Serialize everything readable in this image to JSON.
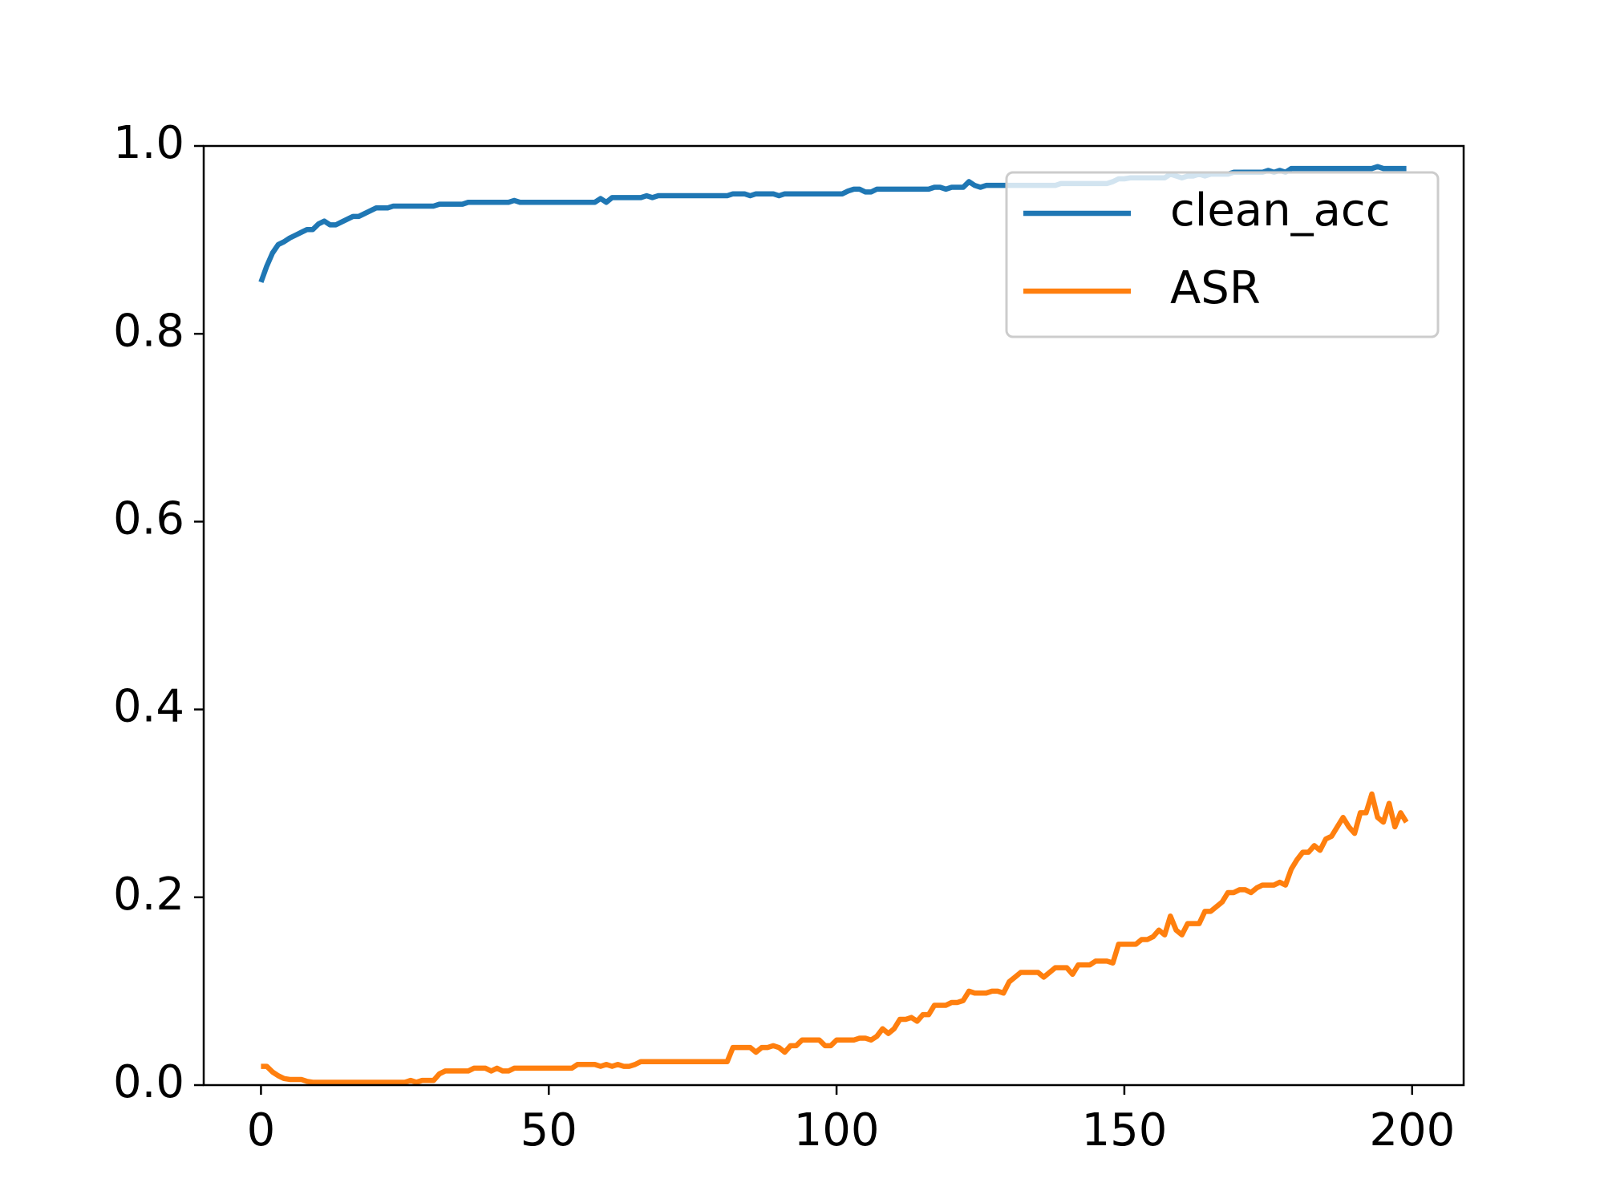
{
  "chart_data": {
    "type": "line",
    "x": [
      0,
      1,
      2,
      3,
      4,
      5,
      6,
      7,
      8,
      9,
      10,
      11,
      12,
      13,
      14,
      15,
      16,
      17,
      18,
      19,
      20,
      21,
      22,
      23,
      24,
      25,
      26,
      27,
      28,
      29,
      30,
      31,
      32,
      33,
      34,
      35,
      36,
      37,
      38,
      39,
      40,
      41,
      42,
      43,
      44,
      45,
      46,
      47,
      48,
      49,
      50,
      51,
      52,
      53,
      54,
      55,
      56,
      57,
      58,
      59,
      60,
      61,
      62,
      63,
      64,
      65,
      66,
      67,
      68,
      69,
      70,
      71,
      72,
      73,
      74,
      75,
      76,
      77,
      78,
      79,
      80,
      81,
      82,
      83,
      84,
      85,
      86,
      87,
      88,
      89,
      90,
      91,
      92,
      93,
      94,
      95,
      96,
      97,
      98,
      99,
      100,
      101,
      102,
      103,
      104,
      105,
      106,
      107,
      108,
      109,
      110,
      111,
      112,
      113,
      114,
      115,
      116,
      117,
      118,
      119,
      120,
      121,
      122,
      123,
      124,
      125,
      126,
      127,
      128,
      129,
      130,
      131,
      132,
      133,
      134,
      135,
      136,
      137,
      138,
      139,
      140,
      141,
      142,
      143,
      144,
      145,
      146,
      147,
      148,
      149,
      150,
      151,
      152,
      153,
      154,
      155,
      156,
      157,
      158,
      159,
      160,
      161,
      162,
      163,
      164,
      165,
      166,
      167,
      168,
      169,
      170,
      171,
      172,
      173,
      174,
      175,
      176,
      177,
      178,
      179,
      180,
      181,
      182,
      183,
      184,
      185,
      186,
      187,
      188,
      189,
      190,
      191,
      192,
      193,
      194,
      195,
      196,
      197,
      198,
      199
    ],
    "series": [
      {
        "name": "clean_acc",
        "color": "#1f77b4",
        "values": [
          0.855,
          0.872,
          0.886,
          0.895,
          0.898,
          0.902,
          0.905,
          0.908,
          0.911,
          0.911,
          0.917,
          0.92,
          0.916,
          0.916,
          0.919,
          0.922,
          0.925,
          0.925,
          0.928,
          0.931,
          0.934,
          0.934,
          0.934,
          0.936,
          0.936,
          0.936,
          0.936,
          0.936,
          0.936,
          0.936,
          0.936,
          0.938,
          0.938,
          0.938,
          0.938,
          0.938,
          0.94,
          0.94,
          0.94,
          0.94,
          0.94,
          0.94,
          0.94,
          0.94,
          0.942,
          0.94,
          0.94,
          0.94,
          0.94,
          0.94,
          0.94,
          0.94,
          0.94,
          0.94,
          0.94,
          0.94,
          0.94,
          0.94,
          0.94,
          0.944,
          0.94,
          0.945,
          0.945,
          0.945,
          0.945,
          0.945,
          0.945,
          0.947,
          0.945,
          0.947,
          0.947,
          0.947,
          0.947,
          0.947,
          0.947,
          0.947,
          0.947,
          0.947,
          0.947,
          0.947,
          0.947,
          0.947,
          0.949,
          0.949,
          0.949,
          0.947,
          0.949,
          0.949,
          0.949,
          0.949,
          0.947,
          0.949,
          0.949,
          0.949,
          0.949,
          0.949,
          0.949,
          0.949,
          0.949,
          0.949,
          0.949,
          0.949,
          0.952,
          0.954,
          0.954,
          0.951,
          0.951,
          0.954,
          0.954,
          0.954,
          0.954,
          0.954,
          0.954,
          0.954,
          0.954,
          0.954,
          0.954,
          0.956,
          0.956,
          0.954,
          0.956,
          0.956,
          0.956,
          0.962,
          0.958,
          0.956,
          0.958,
          0.958,
          0.958,
          0.958,
          0.958,
          0.958,
          0.958,
          0.958,
          0.958,
          0.958,
          0.958,
          0.958,
          0.958,
          0.96,
          0.96,
          0.96,
          0.96,
          0.96,
          0.96,
          0.96,
          0.96,
          0.96,
          0.962,
          0.965,
          0.965,
          0.966,
          0.966,
          0.966,
          0.966,
          0.966,
          0.966,
          0.966,
          0.97,
          0.968,
          0.966,
          0.968,
          0.968,
          0.97,
          0.968,
          0.97,
          0.97,
          0.97,
          0.97,
          0.972,
          0.972,
          0.972,
          0.972,
          0.972,
          0.972,
          0.974,
          0.972,
          0.974,
          0.972,
          0.976,
          0.976,
          0.976,
          0.976,
          0.976,
          0.976,
          0.976,
          0.976,
          0.976,
          0.976,
          0.976,
          0.976,
          0.976,
          0.976,
          0.976,
          0.978,
          0.976,
          0.976,
          0.976,
          0.976,
          0.976
        ]
      },
      {
        "name": "ASR",
        "color": "#ff7f0e",
        "values": [
          0.02,
          0.02,
          0.014,
          0.01,
          0.007,
          0.006,
          0.006,
          0.006,
          0.004,
          0.003,
          0.003,
          0.003,
          0.003,
          0.003,
          0.003,
          0.003,
          0.003,
          0.003,
          0.003,
          0.003,
          0.003,
          0.003,
          0.003,
          0.003,
          0.003,
          0.003,
          0.005,
          0.003,
          0.005,
          0.005,
          0.005,
          0.012,
          0.015,
          0.015,
          0.015,
          0.015,
          0.015,
          0.018,
          0.018,
          0.018,
          0.015,
          0.018,
          0.015,
          0.015,
          0.018,
          0.018,
          0.018,
          0.018,
          0.018,
          0.018,
          0.018,
          0.018,
          0.018,
          0.018,
          0.018,
          0.022,
          0.022,
          0.022,
          0.022,
          0.02,
          0.022,
          0.02,
          0.022,
          0.02,
          0.02,
          0.022,
          0.025,
          0.025,
          0.025,
          0.025,
          0.025,
          0.025,
          0.025,
          0.025,
          0.025,
          0.025,
          0.025,
          0.025,
          0.025,
          0.025,
          0.025,
          0.025,
          0.04,
          0.04,
          0.04,
          0.04,
          0.035,
          0.04,
          0.04,
          0.042,
          0.04,
          0.035,
          0.042,
          0.042,
          0.048,
          0.048,
          0.048,
          0.048,
          0.042,
          0.042,
          0.048,
          0.048,
          0.048,
          0.048,
          0.05,
          0.05,
          0.048,
          0.052,
          0.06,
          0.055,
          0.06,
          0.07,
          0.07,
          0.072,
          0.068,
          0.075,
          0.075,
          0.085,
          0.085,
          0.085,
          0.088,
          0.088,
          0.09,
          0.1,
          0.098,
          0.098,
          0.098,
          0.1,
          0.1,
          0.098,
          0.11,
          0.115,
          0.12,
          0.12,
          0.12,
          0.12,
          0.115,
          0.12,
          0.125,
          0.125,
          0.125,
          0.118,
          0.128,
          0.128,
          0.128,
          0.132,
          0.132,
          0.132,
          0.13,
          0.15,
          0.15,
          0.15,
          0.15,
          0.155,
          0.155,
          0.158,
          0.165,
          0.16,
          0.18,
          0.165,
          0.16,
          0.172,
          0.172,
          0.172,
          0.185,
          0.185,
          0.19,
          0.195,
          0.205,
          0.205,
          0.208,
          0.208,
          0.205,
          0.21,
          0.213,
          0.213,
          0.213,
          0.216,
          0.213,
          0.23,
          0.24,
          0.248,
          0.248,
          0.255,
          0.25,
          0.262,
          0.265,
          0.275,
          0.285,
          0.275,
          0.268,
          0.29,
          0.29,
          0.31,
          0.285,
          0.28,
          0.3,
          0.275,
          0.29,
          0.28
        ]
      }
    ],
    "xlim": [
      -9.95,
      208.95
    ],
    "xticks": [
      0,
      50,
      100,
      150,
      200
    ],
    "ylim": [
      0,
      1
    ],
    "yticks": [
      {
        "value": 0,
        "label": "0.0"
      },
      0.2,
      0.4,
      0.6,
      0.8,
      {
        "value": 1,
        "label": "1.0"
      }
    ],
    "grid": false,
    "legend": "upper right"
  }
}
